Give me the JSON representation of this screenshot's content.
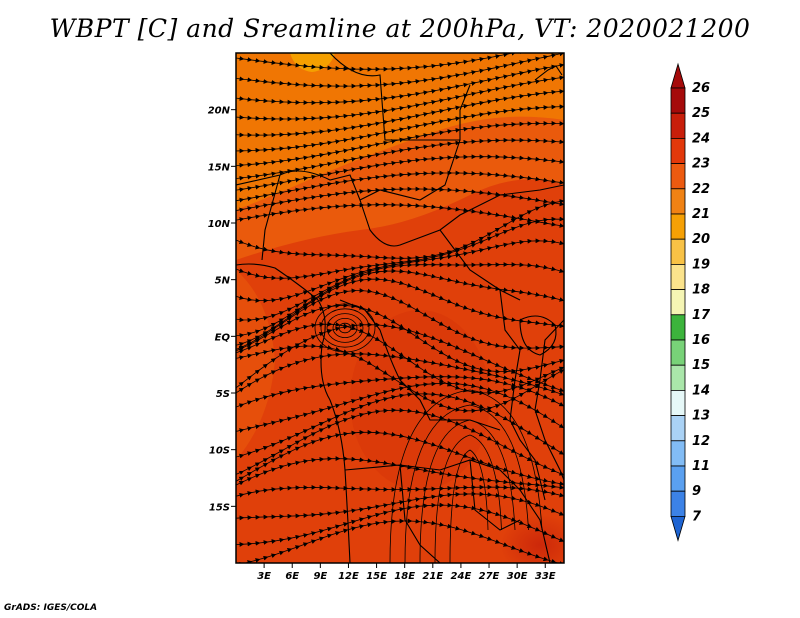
{
  "title": "WBPT [C] and Sreamline at 200hPa, VT: 2020021200",
  "credit": "GrADS: IGES/COLA",
  "map": {
    "lat_ticks": [
      {
        "value": 20,
        "label": "20N"
      },
      {
        "value": 15,
        "label": "15N"
      },
      {
        "value": 10,
        "label": "10N"
      },
      {
        "value": 5,
        "label": "5N"
      },
      {
        "value": 0,
        "label": "EQ"
      },
      {
        "value": -5,
        "label": "5S"
      },
      {
        "value": -10,
        "label": "10S"
      },
      {
        "value": -15,
        "label": "15S"
      }
    ],
    "lon_ticks": [
      {
        "value": 3,
        "label": "3E"
      },
      {
        "value": 6,
        "label": "6E"
      },
      {
        "value": 9,
        "label": "9E"
      },
      {
        "value": 12,
        "label": "12E"
      },
      {
        "value": 15,
        "label": "15E"
      },
      {
        "value": 18,
        "label": "18E"
      },
      {
        "value": 21,
        "label": "21E"
      },
      {
        "value": 24,
        "label": "24E"
      },
      {
        "value": 27,
        "label": "27E"
      },
      {
        "value": 30,
        "label": "30E"
      },
      {
        "value": 33,
        "label": "33E"
      }
    ],
    "lon_range": [
      0,
      35
    ],
    "lat_range": [
      -20,
      25
    ],
    "field_colors": {
      "c21": "#f5a000",
      "c22": "#f28000",
      "c23": "#ea5a0c",
      "c24": "#e0400a",
      "c25": "#c41e0a"
    }
  },
  "colorbar": {
    "labels": [
      "26",
      "25",
      "24",
      "23",
      "22",
      "21",
      "20",
      "19",
      "18",
      "17",
      "16",
      "15",
      "14",
      "13",
      "12",
      "11",
      "9",
      "7"
    ],
    "colors": [
      "#a50a0a",
      "#c81e0a",
      "#e2380a",
      "#ec5a10",
      "#f08214",
      "#f5a005",
      "#f8c246",
      "#fbe38c",
      "#f5f5b4",
      "#3cb43c",
      "#78d278",
      "#aae6aa",
      "#e6f8f8",
      "#aad2f5",
      "#82bcf5",
      "#5aa0f0",
      "#3c82e6",
      "#1e64d2"
    ],
    "top_color": "#a50a0a",
    "bottom_color": "#1e64d2"
  }
}
